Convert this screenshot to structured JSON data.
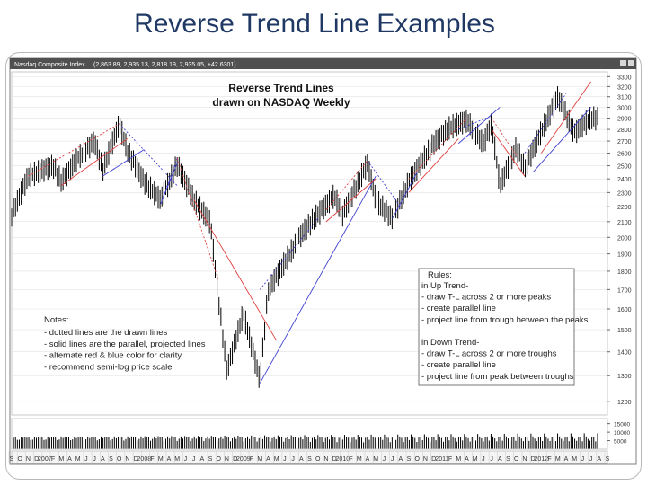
{
  "slide": {
    "title": "Reverse Trend Line Examples"
  },
  "window": {
    "title": "Nasdaq Composite Index",
    "ohlc": "(2,863.89, 2,935.13, 2,818.19, 2,935.05, +42.6301)"
  },
  "chart_data": {
    "type": "bar",
    "title": "Reverse Trend Lines\ndrawn on NASDAQ Weekly",
    "title_lines": [
      "Reverse Trend Lines",
      "drawn on NASDAQ Weekly"
    ],
    "y_scale": "log",
    "ylim": [
      1150,
      3350
    ],
    "yticks": [
      1200,
      1300,
      1400,
      1500,
      1600,
      1700,
      1800,
      1900,
      2000,
      2100,
      2200,
      2300,
      2400,
      2500,
      2600,
      2700,
      2800,
      2900,
      3000,
      3100,
      3200,
      3300
    ],
    "x_range": [
      "2006-09",
      "2012-09"
    ],
    "x_tick_labels": [
      "S",
      "O",
      "N",
      "D",
      "2007",
      "F",
      "M",
      "A",
      "M",
      "J",
      "J",
      "A",
      "S",
      "O",
      "N",
      "D",
      "2008",
      "F",
      "M",
      "A",
      "M",
      "J",
      "J",
      "A",
      "S",
      "O",
      "N",
      "D",
      "2009",
      "F",
      "M",
      "A",
      "M",
      "J",
      "J",
      "A",
      "S",
      "O",
      "N",
      "D",
      "2010",
      "F",
      "M",
      "A",
      "M",
      "J",
      "J",
      "A",
      "S",
      "O",
      "N",
      "D",
      "2011",
      "F",
      "M",
      "A",
      "M",
      "J",
      "J",
      "A",
      "S",
      "O",
      "N",
      "D",
      "2012",
      "F",
      "M",
      "A",
      "M",
      "J",
      "J",
      "A",
      "S"
    ],
    "price_path": [
      {
        "x": "2006-09",
        "y": 2150
      },
      {
        "x": "2006-11",
        "y": 2420
      },
      {
        "x": "2007-02",
        "y": 2500
      },
      {
        "x": "2007-03",
        "y": 2380
      },
      {
        "x": "2007-05",
        "y": 2560
      },
      {
        "x": "2007-07",
        "y": 2700
      },
      {
        "x": "2007-08",
        "y": 2470
      },
      {
        "x": "2007-10",
        "y": 2850
      },
      {
        "x": "2007-11",
        "y": 2620
      },
      {
        "x": "2008-01",
        "y": 2380
      },
      {
        "x": "2008-03",
        "y": 2250
      },
      {
        "x": "2008-05",
        "y": 2510
      },
      {
        "x": "2008-07",
        "y": 2250
      },
      {
        "x": "2008-09",
        "y": 2100
      },
      {
        "x": "2008-10",
        "y": 1650
      },
      {
        "x": "2008-11",
        "y": 1320
      },
      {
        "x": "2009-01",
        "y": 1580
      },
      {
        "x": "2009-03",
        "y": 1280
      },
      {
        "x": "2009-04",
        "y": 1700
      },
      {
        "x": "2009-06",
        "y": 1850
      },
      {
        "x": "2009-08",
        "y": 2020
      },
      {
        "x": "2009-10",
        "y": 2150
      },
      {
        "x": "2009-12",
        "y": 2280
      },
      {
        "x": "2010-01",
        "y": 2150
      },
      {
        "x": "2010-04",
        "y": 2520
      },
      {
        "x": "2010-05",
        "y": 2250
      },
      {
        "x": "2010-07",
        "y": 2120
      },
      {
        "x": "2010-09",
        "y": 2380
      },
      {
        "x": "2010-12",
        "y": 2680
      },
      {
        "x": "2011-02",
        "y": 2820
      },
      {
        "x": "2011-04",
        "y": 2880
      },
      {
        "x": "2011-06",
        "y": 2680
      },
      {
        "x": "2011-07",
        "y": 2850
      },
      {
        "x": "2011-08",
        "y": 2350
      },
      {
        "x": "2011-10",
        "y": 2650
      },
      {
        "x": "2011-11",
        "y": 2480
      },
      {
        "x": "2012-01",
        "y": 2780
      },
      {
        "x": "2012-03",
        "y": 3100
      },
      {
        "x": "2012-05",
        "y": 2770
      },
      {
        "x": "2012-07",
        "y": 2900
      }
    ],
    "volume": {
      "yticks": [
        5000,
        10000,
        15000
      ],
      "ylim": [
        0,
        18000
      ]
    },
    "trend_lines": [
      {
        "style": "dotted",
        "color": "#e04040",
        "points": [
          {
            "x": "2006-11",
            "y": 2420
          },
          {
            "x": "2007-10",
            "y": 2850
          }
        ]
      },
      {
        "style": "solid",
        "color": "#e04040",
        "points": [
          {
            "x": "2007-03",
            "y": 2350
          },
          {
            "x": "2007-11",
            "y": 2720
          }
        ]
      },
      {
        "style": "dotted",
        "color": "#4040d0",
        "points": [
          {
            "x": "2007-10",
            "y": 2850
          },
          {
            "x": "2008-05",
            "y": 2350
          }
        ]
      },
      {
        "style": "solid",
        "color": "#4040d0",
        "points": [
          {
            "x": "2007-08",
            "y": 2420
          },
          {
            "x": "2008-01",
            "y": 2630
          }
        ]
      },
      {
        "style": "dotted",
        "color": "#4040d0",
        "points": [
          {
            "x": "2008-03",
            "y": 2220
          },
          {
            "x": "2008-05",
            "y": 2560
          }
        ]
      },
      {
        "style": "solid",
        "color": "#4040d0",
        "points": [
          {
            "x": "2008-03",
            "y": 2220
          },
          {
            "x": "2008-05",
            "y": 2520
          }
        ]
      },
      {
        "style": "dotted",
        "color": "#e04040",
        "points": [
          {
            "x": "2008-05",
            "y": 2560
          },
          {
            "x": "2008-10",
            "y": 1750
          }
        ]
      },
      {
        "style": "solid",
        "color": "#e04040",
        "points": [
          {
            "x": "2008-07",
            "y": 2250
          },
          {
            "x": "2009-05",
            "y": 1450
          }
        ]
      },
      {
        "style": "dotted",
        "color": "#4040d0",
        "points": [
          {
            "x": "2009-03",
            "y": 1700
          },
          {
            "x": "2009-10",
            "y": 2120
          }
        ]
      },
      {
        "style": "solid",
        "color": "#4040d0",
        "points": [
          {
            "x": "2009-03",
            "y": 1270
          },
          {
            "x": "2010-05",
            "y": 2420
          }
        ]
      },
      {
        "style": "dotted",
        "color": "#e04040",
        "points": [
          {
            "x": "2009-11",
            "y": 2180
          },
          {
            "x": "2010-04",
            "y": 2540
          }
        ]
      },
      {
        "style": "solid",
        "color": "#e04040",
        "points": [
          {
            "x": "2009-11",
            "y": 2100
          },
          {
            "x": "2010-05",
            "y": 2400
          }
        ]
      },
      {
        "style": "dotted",
        "color": "#4040d0",
        "points": [
          {
            "x": "2010-04",
            "y": 2540
          },
          {
            "x": "2010-08",
            "y": 2200
          }
        ]
      },
      {
        "style": "solid",
        "color": "#4040d0",
        "points": [
          {
            "x": "2010-07",
            "y": 2120
          },
          {
            "x": "2010-10",
            "y": 2450
          }
        ]
      },
      {
        "style": "dotted",
        "color": "#e04040",
        "points": [
          {
            "x": "2010-09",
            "y": 2400
          },
          {
            "x": "2011-04",
            "y": 2900
          }
        ]
      },
      {
        "style": "solid",
        "color": "#e04040",
        "points": [
          {
            "x": "2010-09",
            "y": 2300
          },
          {
            "x": "2011-03",
            "y": 2720
          }
        ]
      },
      {
        "style": "dotted",
        "color": "#4040d0",
        "points": [
          {
            "x": "2011-03",
            "y": 2800
          },
          {
            "x": "2011-07",
            "y": 2920
          }
        ]
      },
      {
        "style": "solid",
        "color": "#4040d0",
        "points": [
          {
            "x": "2011-03",
            "y": 2680
          },
          {
            "x": "2011-08",
            "y": 3000
          }
        ]
      },
      {
        "style": "dotted",
        "color": "#e04040",
        "points": [
          {
            "x": "2011-07",
            "y": 2900
          },
          {
            "x": "2011-10",
            "y": 2580
          }
        ]
      },
      {
        "style": "solid",
        "color": "#e04040",
        "points": [
          {
            "x": "2011-07",
            "y": 2800
          },
          {
            "x": "2011-11",
            "y": 2420
          }
        ]
      },
      {
        "style": "dotted",
        "color": "#4040d0",
        "points": [
          {
            "x": "2011-11",
            "y": 2600
          },
          {
            "x": "2012-04",
            "y": 3130
          }
        ]
      },
      {
        "style": "solid",
        "color": "#4040d0",
        "points": [
          {
            "x": "2011-12",
            "y": 2450
          },
          {
            "x": "2012-07",
            "y": 3000
          }
        ]
      },
      {
        "style": "solid",
        "color": "#e04040",
        "points": [
          {
            "x": "2012-01",
            "y": 2600
          },
          {
            "x": "2012-07",
            "y": 3250
          }
        ]
      }
    ],
    "notes": {
      "title": "Notes:",
      "lines": [
        "- dotted lines are the drawn lines",
        "- solid lines are the parallel, projected lines",
        "- alternate red & blue color for clarity",
        "- recommend semi-log price scale"
      ]
    },
    "rules": {
      "title": "Rules:",
      "lines": [
        "in Up Trend-",
        "- draw T-L across 2 or more peaks",
        "- create parallel line",
        "- project line from trough between the peaks",
        "",
        "in Down Trend-",
        "- draw T-L across 2 or more troughs",
        "- create parallel line",
        "- project line from peak between troughs"
      ]
    }
  },
  "colors": {
    "title": "#1f3864",
    "up_line": "#e04040",
    "down_line": "#4040d0",
    "bars": "#000000",
    "window_bar": "#505050"
  }
}
